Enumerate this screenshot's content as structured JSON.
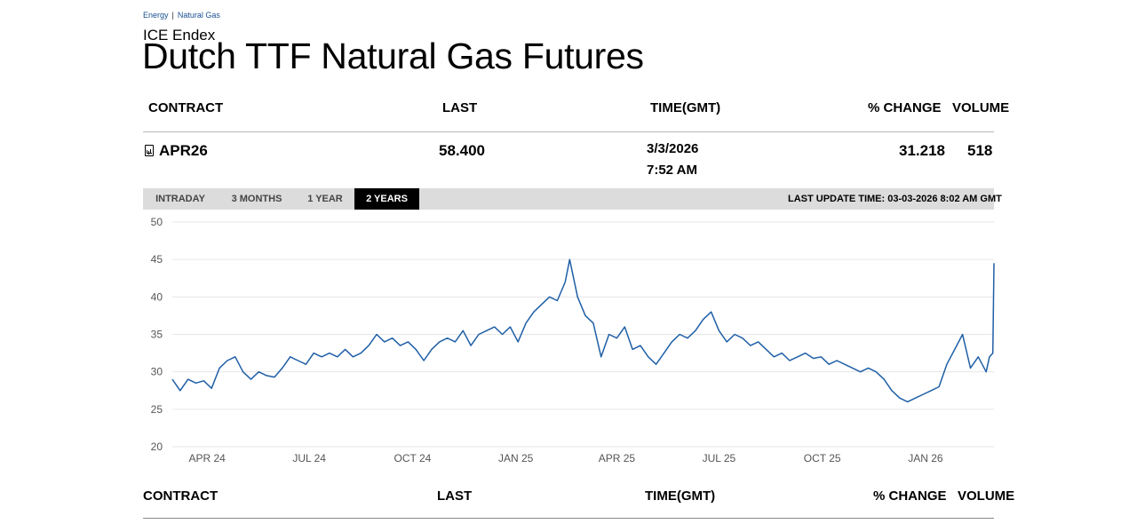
{
  "breadcrumb": {
    "items": [
      "Energy",
      "Natural Gas"
    ]
  },
  "exchange": "ICE Endex",
  "title": "Dutch TTF Natural Gas Futures",
  "table": {
    "headers": {
      "contract": "CONTRACT",
      "last": "LAST",
      "time": "TIME(GMT)",
      "change": "% CHANGE",
      "volume": "VOLUME"
    },
    "row": {
      "contract": "APR26",
      "last": "58.400",
      "date": "3/3/2026",
      "time": "7:52 AM",
      "change": "31.218",
      "volume": "518"
    }
  },
  "tabs": [
    {
      "label": "INTRADAY",
      "active": false
    },
    {
      "label": "3 MONTHS",
      "active": false
    },
    {
      "label": "1 YEAR",
      "active": false
    },
    {
      "label": "2 YEARS",
      "active": true
    }
  ],
  "last_update": "LAST UPDATE TIME: 03-03-2026 8:02 AM GMT",
  "icons": {
    "contract": "document-chart-icon"
  },
  "colors": {
    "line": "#1f5fa6",
    "tab_active_bg": "#000000",
    "tabbar_bg": "#dcdcdc"
  },
  "chart_data": {
    "type": "line",
    "ylim": [
      20,
      50
    ],
    "yticks": [
      20,
      25,
      30,
      35,
      40,
      45,
      50
    ],
    "xlim": [
      "2024-03-01",
      "2026-03-03"
    ],
    "xticks": [
      {
        "label": "APR 24",
        "date": "2024-04-01"
      },
      {
        "label": "JUL 24",
        "date": "2024-07-01"
      },
      {
        "label": "OCT 24",
        "date": "2024-10-01"
      },
      {
        "label": "JAN 25",
        "date": "2025-01-01"
      },
      {
        "label": "APR 25",
        "date": "2025-04-01"
      },
      {
        "label": "JUL 25",
        "date": "2025-07-01"
      },
      {
        "label": "OCT 25",
        "date": "2025-10-01"
      },
      {
        "label": "JAN 26",
        "date": "2026-01-01"
      }
    ],
    "grid": true,
    "series": [
      {
        "points": [
          [
            "2024-03-01",
            29.0
          ],
          [
            "2024-03-08",
            27.5
          ],
          [
            "2024-03-15",
            29.0
          ],
          [
            "2024-03-22",
            28.5
          ],
          [
            "2024-03-29",
            28.8
          ],
          [
            "2024-04-05",
            27.8
          ],
          [
            "2024-04-12",
            30.5
          ],
          [
            "2024-04-19",
            31.5
          ],
          [
            "2024-04-26",
            32.0
          ],
          [
            "2024-05-03",
            30.0
          ],
          [
            "2024-05-10",
            29.0
          ],
          [
            "2024-05-17",
            30.0
          ],
          [
            "2024-05-24",
            29.5
          ],
          [
            "2024-05-31",
            29.3
          ],
          [
            "2024-06-07",
            30.5
          ],
          [
            "2024-06-14",
            32.0
          ],
          [
            "2024-06-21",
            31.5
          ],
          [
            "2024-06-28",
            31.0
          ],
          [
            "2024-07-05",
            32.5
          ],
          [
            "2024-07-12",
            32.0
          ],
          [
            "2024-07-19",
            32.5
          ],
          [
            "2024-07-26",
            32.0
          ],
          [
            "2024-08-02",
            33.0
          ],
          [
            "2024-08-09",
            32.0
          ],
          [
            "2024-08-16",
            32.5
          ],
          [
            "2024-08-23",
            33.5
          ],
          [
            "2024-08-30",
            35.0
          ],
          [
            "2024-09-06",
            34.0
          ],
          [
            "2024-09-13",
            34.5
          ],
          [
            "2024-09-20",
            33.5
          ],
          [
            "2024-09-27",
            34.0
          ],
          [
            "2024-10-04",
            33.0
          ],
          [
            "2024-10-11",
            31.5
          ],
          [
            "2024-10-18",
            33.0
          ],
          [
            "2024-10-25",
            34.0
          ],
          [
            "2024-11-01",
            34.5
          ],
          [
            "2024-11-08",
            34.0
          ],
          [
            "2024-11-15",
            35.5
          ],
          [
            "2024-11-22",
            33.5
          ],
          [
            "2024-11-29",
            35.0
          ],
          [
            "2024-12-06",
            35.5
          ],
          [
            "2024-12-13",
            36.0
          ],
          [
            "2024-12-20",
            35.0
          ],
          [
            "2024-12-27",
            36.0
          ],
          [
            "2025-01-03",
            34.0
          ],
          [
            "2025-01-10",
            36.5
          ],
          [
            "2025-01-17",
            38.0
          ],
          [
            "2025-01-24",
            39.0
          ],
          [
            "2025-01-31",
            40.0
          ],
          [
            "2025-02-07",
            39.5
          ],
          [
            "2025-02-14",
            42.0
          ],
          [
            "2025-02-18",
            45.0
          ],
          [
            "2025-02-25",
            40.0
          ],
          [
            "2025-03-04",
            37.5
          ],
          [
            "2025-03-11",
            36.5
          ],
          [
            "2025-03-18",
            32.0
          ],
          [
            "2025-03-25",
            35.0
          ],
          [
            "2025-04-01",
            34.5
          ],
          [
            "2025-04-08",
            36.0
          ],
          [
            "2025-04-15",
            33.0
          ],
          [
            "2025-04-22",
            33.5
          ],
          [
            "2025-04-29",
            32.0
          ],
          [
            "2025-05-06",
            31.0
          ],
          [
            "2025-05-13",
            32.5
          ],
          [
            "2025-05-20",
            34.0
          ],
          [
            "2025-05-27",
            35.0
          ],
          [
            "2025-06-03",
            34.5
          ],
          [
            "2025-06-10",
            35.5
          ],
          [
            "2025-06-17",
            37.0
          ],
          [
            "2025-06-24",
            38.0
          ],
          [
            "2025-07-01",
            35.5
          ],
          [
            "2025-07-08",
            34.0
          ],
          [
            "2025-07-15",
            35.0
          ],
          [
            "2025-07-22",
            34.5
          ],
          [
            "2025-07-29",
            33.5
          ],
          [
            "2025-08-05",
            34.0
          ],
          [
            "2025-08-12",
            33.0
          ],
          [
            "2025-08-19",
            32.0
          ],
          [
            "2025-08-26",
            32.5
          ],
          [
            "2025-09-02",
            31.5
          ],
          [
            "2025-09-09",
            32.0
          ],
          [
            "2025-09-16",
            32.5
          ],
          [
            "2025-09-23",
            31.8
          ],
          [
            "2025-09-30",
            32.0
          ],
          [
            "2025-10-07",
            31.0
          ],
          [
            "2025-10-14",
            31.5
          ],
          [
            "2025-10-21",
            31.0
          ],
          [
            "2025-10-28",
            30.5
          ],
          [
            "2025-11-04",
            30.0
          ],
          [
            "2025-11-11",
            30.5
          ],
          [
            "2025-11-18",
            30.0
          ],
          [
            "2025-11-25",
            29.0
          ],
          [
            "2025-12-02",
            27.5
          ],
          [
            "2025-12-09",
            26.5
          ],
          [
            "2025-12-16",
            26.0
          ],
          [
            "2025-12-23",
            26.5
          ],
          [
            "2025-12-30",
            27.0
          ],
          [
            "2026-01-06",
            27.5
          ],
          [
            "2026-01-13",
            28.0
          ],
          [
            "2026-01-20",
            31.0
          ],
          [
            "2026-01-27",
            33.0
          ],
          [
            "2026-02-03",
            35.0
          ],
          [
            "2026-02-10",
            30.5
          ],
          [
            "2026-02-17",
            32.0
          ],
          [
            "2026-02-24",
            30.0
          ],
          [
            "2026-02-27",
            32.0
          ],
          [
            "2026-03-02",
            32.5
          ],
          [
            "2026-03-03",
            44.5
          ]
        ]
      }
    ]
  }
}
